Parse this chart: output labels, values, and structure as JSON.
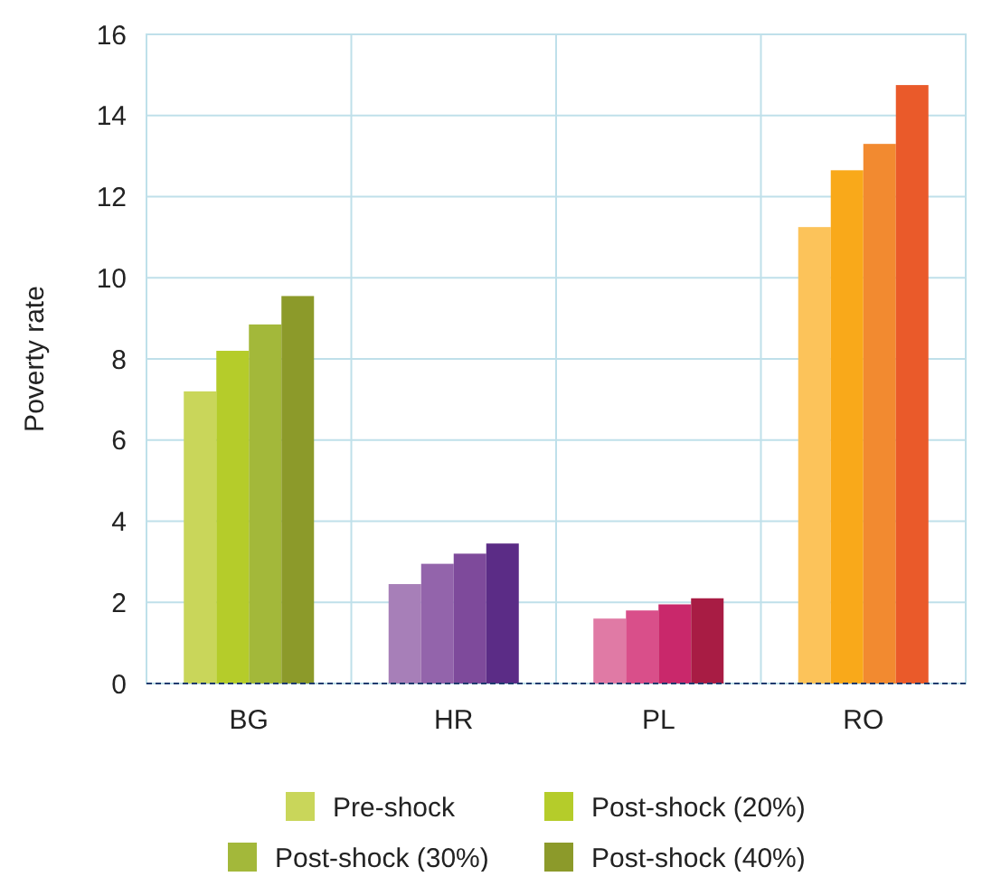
{
  "chart_data": {
    "type": "bar",
    "ylabel": "Poverty rate",
    "categories": [
      "BG",
      "HR",
      "PL",
      "RO"
    ],
    "series": [
      {
        "name": "Pre-shock",
        "color": "#c9d65a",
        "colors": [
          "#c9d65a",
          "#a77fb8",
          "#e07aa5",
          "#fcc35a"
        ],
        "values": [
          7.2,
          2.45,
          1.6,
          11.25
        ]
      },
      {
        "name": "Post-shock (20%)",
        "color": "#b5cc2a",
        "colors": [
          "#b5cc2a",
          "#9364ab",
          "#d94f8a",
          "#f9a91a"
        ],
        "values": [
          8.2,
          2.95,
          1.8,
          12.65
        ]
      },
      {
        "name": "Post-shock (30%)",
        "color": "#a3b83a",
        "colors": [
          "#a3b83a",
          "#7e4a9b",
          "#c9286b",
          "#f28a30"
        ],
        "values": [
          8.85,
          3.2,
          1.95,
          13.3
        ]
      },
      {
        "name": "Post-shock (40%)",
        "color": "#8c9a2a",
        "colors": [
          "#8c9a2a",
          "#5b2c86",
          "#a81c44",
          "#ea5a2a"
        ],
        "values": [
          9.55,
          3.45,
          2.1,
          14.75
        ]
      }
    ],
    "ylim": [
      0,
      16
    ],
    "yticks": [
      0,
      2,
      4,
      6,
      8,
      10,
      12,
      14,
      16
    ],
    "grid": true,
    "legend": "bottom"
  }
}
